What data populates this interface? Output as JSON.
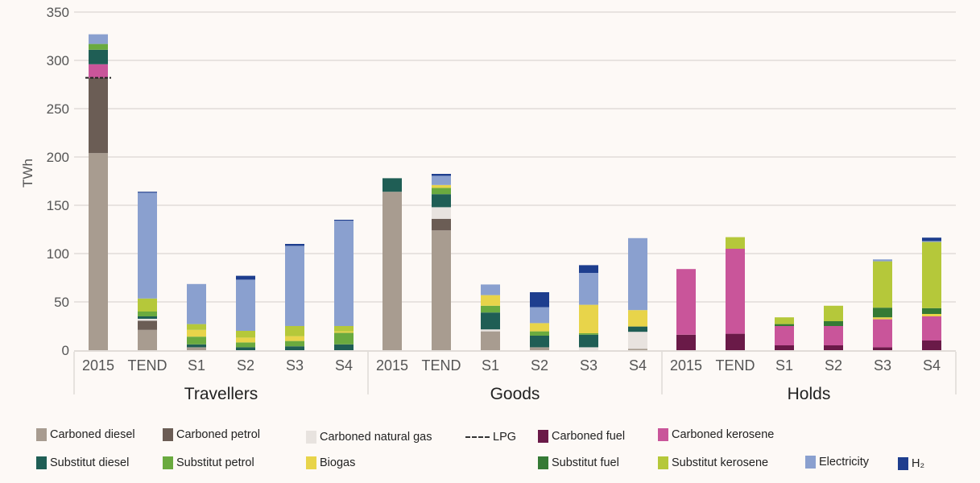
{
  "chart_data": {
    "type": "bar",
    "stacked": true,
    "ylabel": "TWh",
    "ylim": [
      0,
      350
    ],
    "yticks": [
      0,
      50,
      100,
      150,
      200,
      250,
      300,
      350
    ],
    "grid": true,
    "legend_position": "bottom",
    "groups": [
      {
        "name": "Travellers",
        "categories": [
          "2015",
          "TEND",
          "S1",
          "S2",
          "S3",
          "S4"
        ]
      },
      {
        "name": "Goods",
        "categories": [
          "2015",
          "TEND",
          "S1",
          "S2",
          "S3",
          "S4"
        ]
      },
      {
        "name": "Holds",
        "categories": [
          "2015",
          "TEND",
          "S1",
          "S2",
          "S3",
          "S4"
        ]
      }
    ],
    "series": [
      {
        "name": "Carboned diesel",
        "color": "#a89c90",
        "values": [
          204,
          21,
          3,
          0,
          0,
          0,
          164,
          124,
          19.5,
          3,
          0,
          1.5,
          0,
          0,
          0,
          0,
          0,
          0
        ]
      },
      {
        "name": "Carboned petrol",
        "color": "#6b5d55",
        "values": [
          78,
          9.5,
          0,
          0,
          0,
          0,
          0,
          12,
          0,
          0,
          0,
          0,
          0,
          0,
          0,
          0,
          0,
          0
        ]
      },
      {
        "name": "Carboned natural gas",
        "color": "#e8e3df",
        "values": [
          0,
          2,
          0,
          0,
          0,
          0,
          0,
          12,
          2,
          0,
          3,
          17.5,
          0,
          0,
          0,
          0,
          0,
          0
        ]
      },
      {
        "name": "Carboned fuel",
        "color": "#6a1a48",
        "values": [
          0,
          0,
          0,
          0,
          0,
          0,
          0,
          0,
          0,
          0,
          0,
          0,
          16,
          17,
          5,
          5,
          3,
          10
        ]
      },
      {
        "name": "Carboned kerosene",
        "color": "#c9559a",
        "values": [
          14,
          0,
          0,
          0,
          0,
          0,
          0,
          0,
          0,
          0,
          0,
          0,
          68,
          88,
          20,
          20,
          29,
          25
        ]
      },
      {
        "name": "Substitut diesel",
        "color": "#1f5e55",
        "values": [
          15,
          2.5,
          3,
          3,
          4,
          6,
          14,
          13.5,
          17.5,
          12,
          13,
          5.5,
          0,
          0,
          0,
          0,
          0,
          0
        ]
      },
      {
        "name": "Substitut petrol",
        "color": "#6aaa3f",
        "values": [
          6,
          5,
          8,
          5,
          5.5,
          12,
          0,
          6.5,
          7,
          4.5,
          1.5,
          0,
          0,
          0,
          0,
          0,
          0,
          0
        ]
      },
      {
        "name": "Biogas",
        "color": "#e8d44a",
        "values": [
          0,
          0,
          7,
          5,
          5,
          1.5,
          0,
          3,
          11,
          8.5,
          29.5,
          17,
          0,
          0,
          0,
          0,
          2,
          2.5
        ]
      },
      {
        "name": "Substitut fuel",
        "color": "#357a35",
        "values": [
          0,
          0,
          0,
          0,
          0,
          0,
          0,
          0,
          0,
          0,
          0,
          0,
          0,
          0,
          2,
          5,
          10,
          6
        ]
      },
      {
        "name": "Substitut kerosene",
        "color": "#b5c83a",
        "values": [
          0,
          13.5,
          6,
          7,
          10.5,
          5.5,
          0,
          0,
          0,
          0,
          0,
          0,
          0,
          12,
          7,
          16,
          48,
          68.5
        ]
      },
      {
        "name": "Electricity",
        "color": "#8aa0cf",
        "values": [
          10,
          109.5,
          41.5,
          53,
          83,
          109,
          0,
          9.5,
          11,
          16.5,
          33,
          74.5,
          0,
          0,
          0,
          0,
          2,
          1
        ]
      },
      {
        "name": "H₂",
        "color": "#1e3e8e",
        "values": [
          0,
          1,
          0,
          4,
          2,
          1,
          0,
          2,
          0,
          15.5,
          8,
          0,
          0,
          0,
          0,
          0,
          0,
          3.5
        ]
      }
    ],
    "lpg": {
      "name": "LPG",
      "values": [
        282,
        null,
        null,
        null,
        null,
        null,
        null,
        null,
        null,
        null,
        null,
        null,
        null,
        null,
        null,
        null,
        null,
        null
      ]
    }
  },
  "legend": {
    "items": [
      "Carboned diesel",
      "Carboned petrol",
      "Carboned natural gas",
      "LPG",
      "Carboned fuel",
      "Carboned kerosene",
      "Substitut diesel",
      "Substitut petrol",
      "Biogas",
      "Substitut fuel",
      "Substitut kerosene",
      "Electricity",
      "H₂"
    ]
  }
}
